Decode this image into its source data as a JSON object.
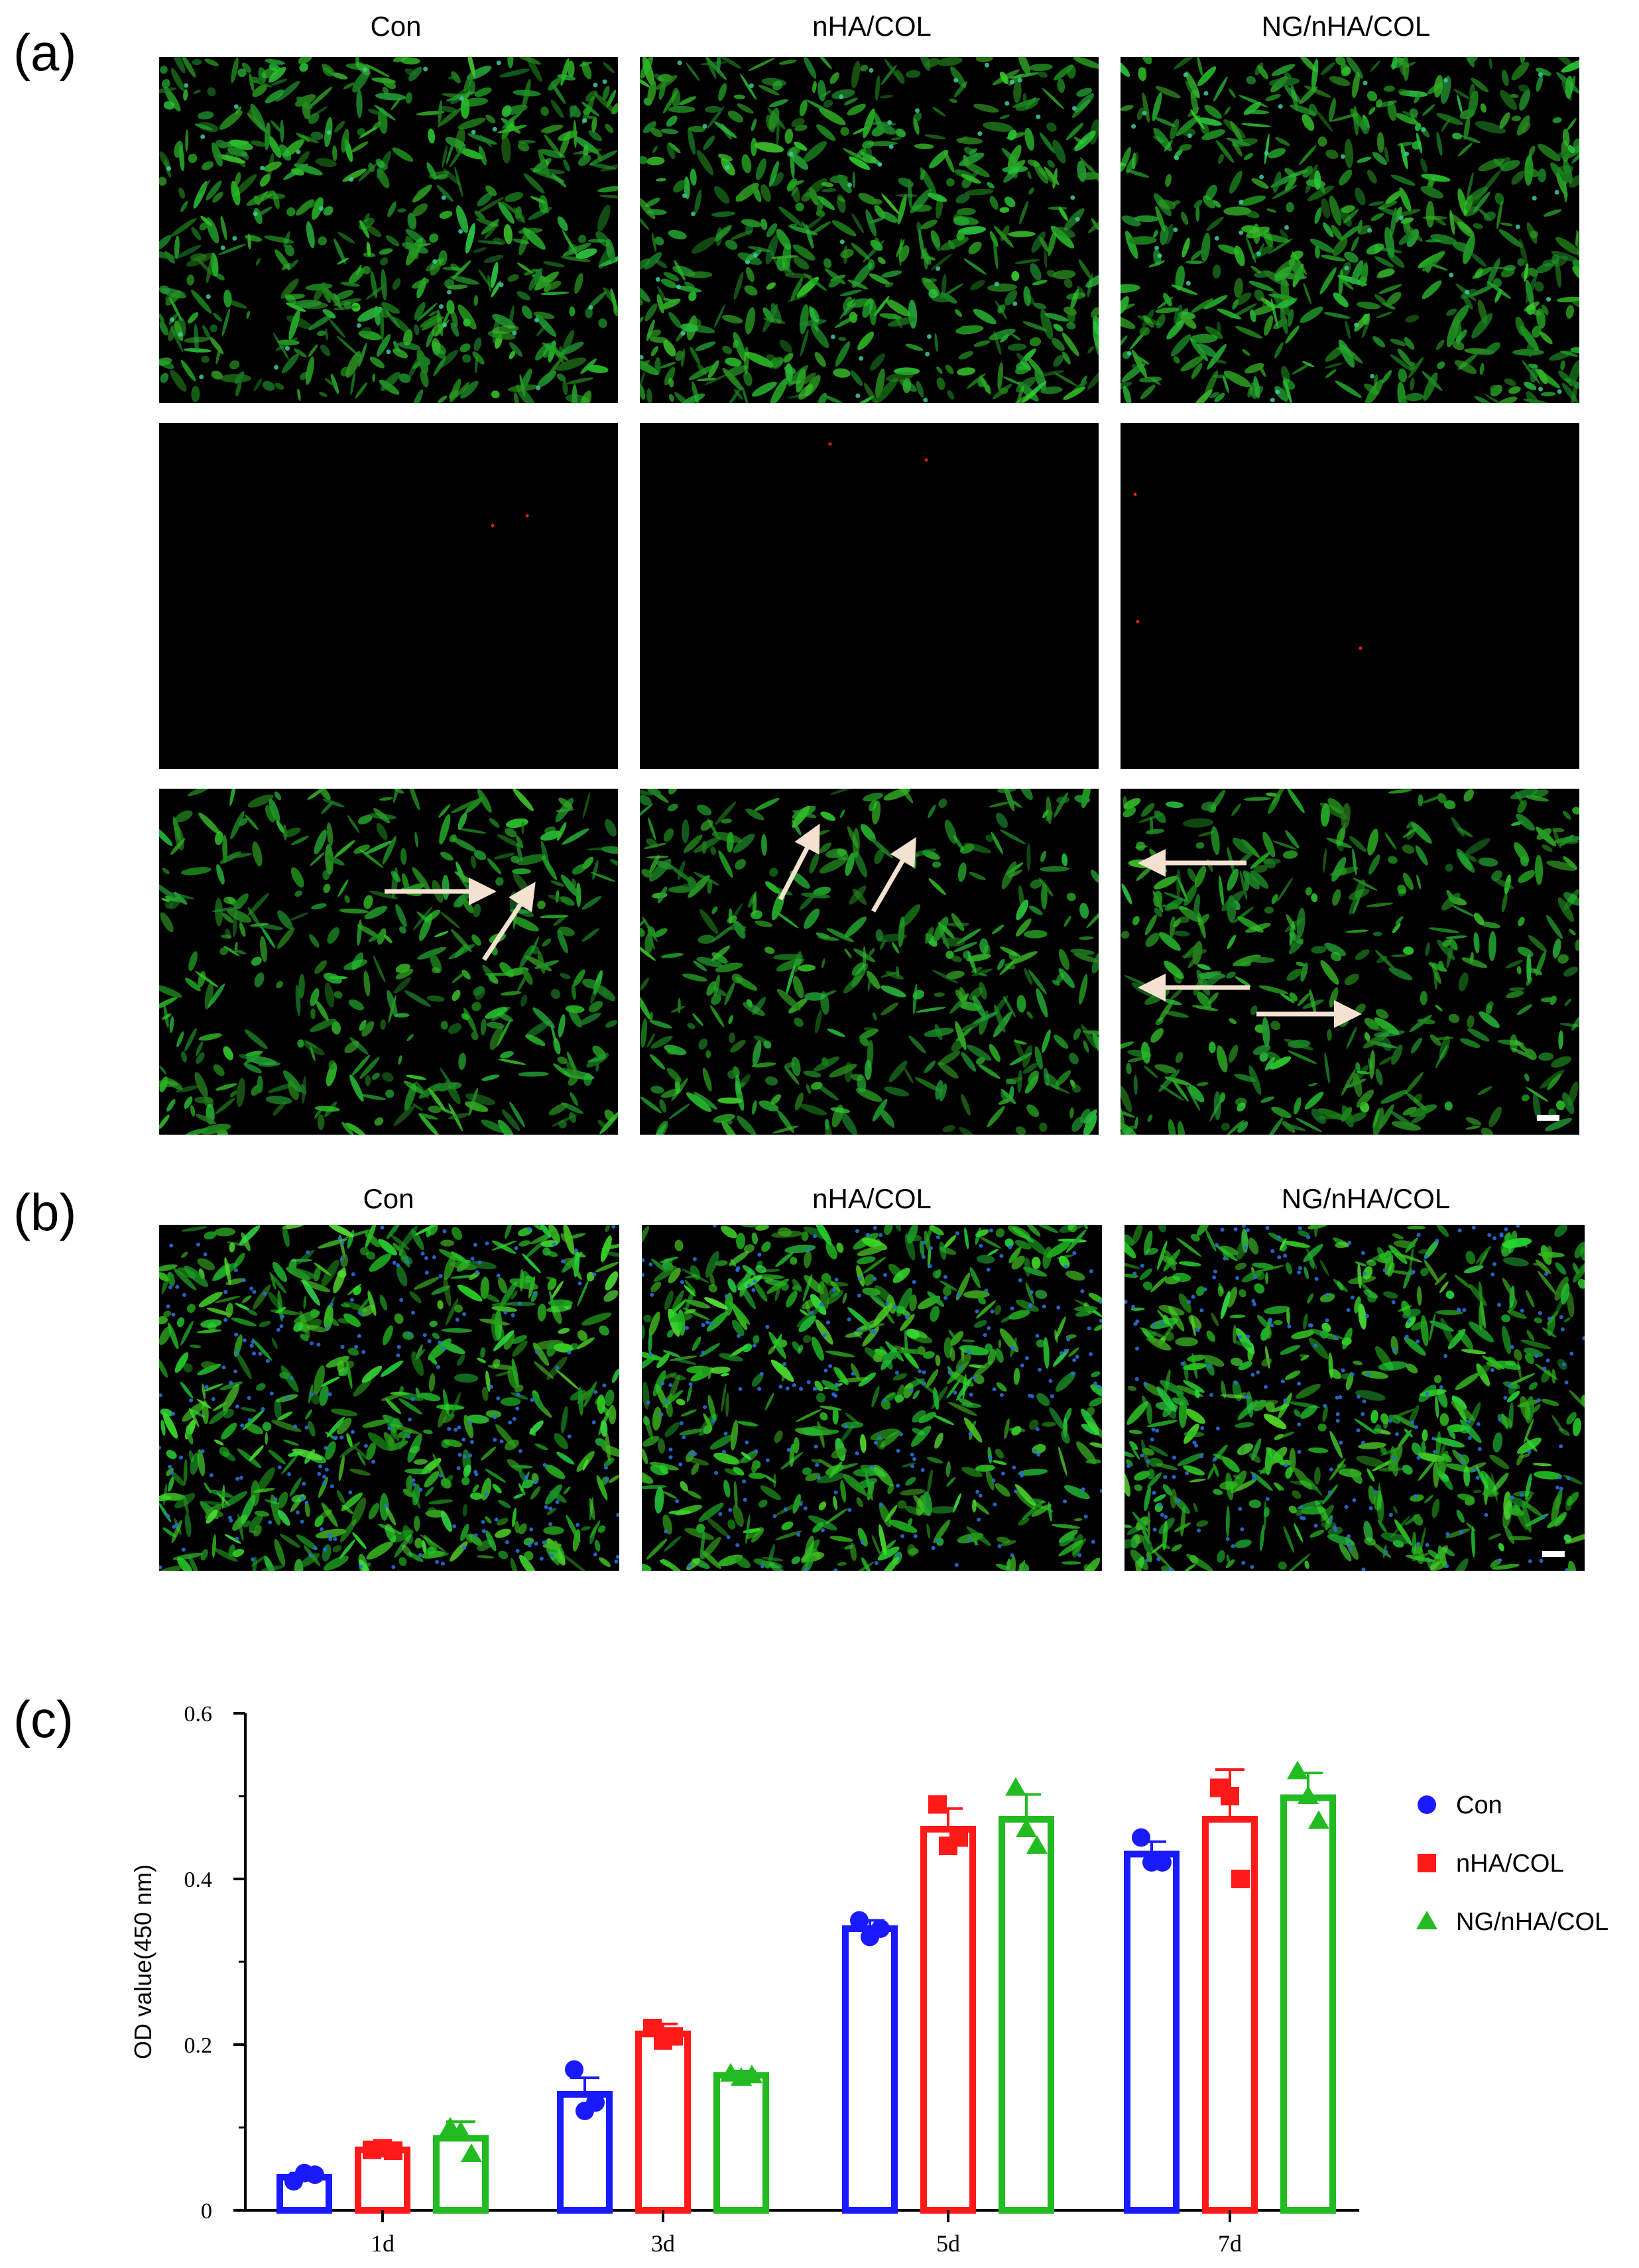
{
  "panels": {
    "a": {
      "letter": "(a)",
      "columns": [
        "Con",
        "nHA/COL",
        "NG/nHA/COL"
      ]
    },
    "b": {
      "letter": "(b)",
      "columns": [
        "Con",
        "nHA/COL",
        "NG/nHA/COL"
      ]
    },
    "c": {
      "letter": "(c)"
    }
  },
  "image_kinds": {
    "live": "green fluorescence (live cells)",
    "dead": "red fluorescence (dead cells)",
    "merge": "merged live/dead with arrows",
    "cytoskeleton": "green actin with blue nuclei"
  },
  "colors": {
    "live_green": "#2fa52a",
    "dead_red": "#e02020",
    "nucleus_blue": "#2b6bd6",
    "arrow": "#f4e1cf",
    "con": "#1a1aff",
    "nha_col": "#ff1a1a",
    "ng_nha_col": "#22bb22"
  },
  "chart_data": {
    "type": "bar",
    "categories": [
      "1d",
      "3d",
      "5d",
      "7d"
    ],
    "ylabel": "OD value(450 nm)",
    "ylim": [
      0,
      0.6
    ],
    "yticks": [
      "0",
      "0.2",
      "0.4",
      "0.6"
    ],
    "series": [
      {
        "name": "Con",
        "marker": "circle",
        "color": "#1a1aff",
        "values": [
          0.04,
          0.14,
          0.34,
          0.43
        ],
        "errors": [
          0.005,
          0.02,
          0.01,
          0.015
        ],
        "points": [
          [
            0.035,
            0.045,
            0.043
          ],
          [
            0.17,
            0.12,
            0.13
          ],
          [
            0.35,
            0.33,
            0.34
          ],
          [
            0.45,
            0.42,
            0.42
          ]
        ]
      },
      {
        "name": "nHA/COL",
        "marker": "square",
        "color": "#ff1a1a",
        "values": [
          0.073,
          0.213,
          0.46,
          0.472
        ],
        "errors": [
          0.004,
          0.012,
          0.025,
          0.06
        ],
        "points": [
          [
            0.073,
            0.075,
            0.072
          ],
          [
            0.22,
            0.205,
            0.21
          ],
          [
            0.49,
            0.44,
            0.45
          ],
          [
            0.51,
            0.5,
            0.4
          ]
        ]
      },
      {
        "name": "NG/nHA/COL",
        "marker": "triangle",
        "color": "#22bb22",
        "values": [
          0.087,
          0.163,
          0.472,
          0.498
        ],
        "errors": [
          0.02,
          0.005,
          0.03,
          0.03
        ],
        "points": [
          [
            0.1,
            0.095,
            0.068
          ],
          [
            0.165,
            0.16,
            0.163
          ],
          [
            0.51,
            0.46,
            0.44
          ],
          [
            0.53,
            0.5,
            0.47
          ]
        ]
      }
    ],
    "legend": [
      "Con",
      "nHA/COL",
      "NG/nHA/COL"
    ],
    "legend_position": "right"
  }
}
